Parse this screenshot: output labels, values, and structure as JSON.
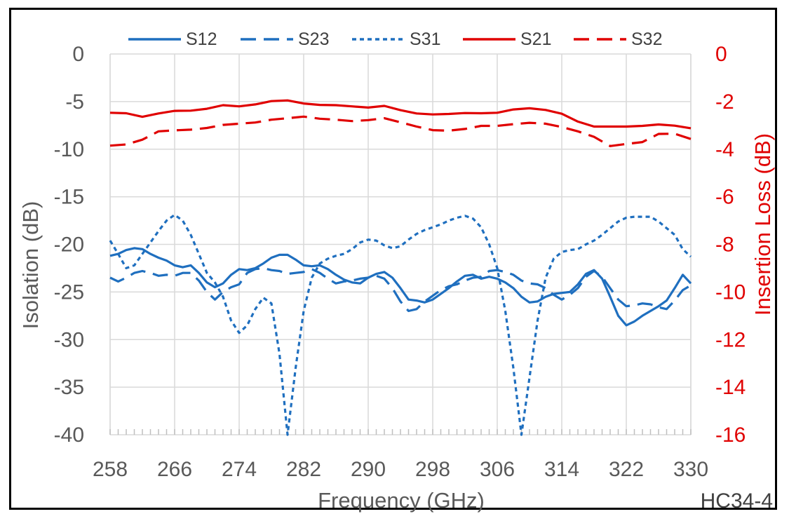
{
  "chart_data": {
    "type": "line",
    "title": "",
    "xlabel": "Frequency (GHz)",
    "ylabel_left": "Isolation (dB)",
    "ylabel_right": "Insertion Loss (dB)",
    "xlim": [
      258,
      330
    ],
    "ylim_left": [
      -40,
      0
    ],
    "ylim_right": [
      -16,
      0
    ],
    "x_ticks": [
      258,
      266,
      274,
      282,
      290,
      298,
      306,
      314,
      322,
      330
    ],
    "y_left_ticks": [
      0,
      -5,
      -10,
      -15,
      -20,
      -25,
      -30,
      -35,
      -40
    ],
    "y_right_ticks": [
      0,
      -2,
      -4,
      -6,
      -8,
      -10,
      -12,
      -14,
      -16
    ],
    "grid": true,
    "legend_position": "top",
    "annotation": "HC34-4",
    "colors": {
      "blue": "#1f6fbf",
      "red": "#e00000",
      "grid": "#d9d9d9",
      "axis_text": "#595959"
    },
    "series": [
      {
        "name": "S12",
        "axis": "left",
        "color": "#1f6fbf",
        "dash": "solid",
        "points": [
          [
            258,
            -21.2
          ],
          [
            259,
            -21.0
          ],
          [
            260,
            -20.6
          ],
          [
            261,
            -20.4
          ],
          [
            262,
            -20.5
          ],
          [
            263,
            -21.0
          ],
          [
            264,
            -21.4
          ],
          [
            265,
            -21.7
          ],
          [
            266,
            -22.2
          ],
          [
            267,
            -22.4
          ],
          [
            268,
            -22.2
          ],
          [
            269,
            -23.0
          ],
          [
            270,
            -24.0
          ],
          [
            271,
            -24.5
          ],
          [
            272,
            -24.1
          ],
          [
            273,
            -23.2
          ],
          [
            274,
            -22.6
          ],
          [
            275,
            -22.7
          ],
          [
            276,
            -22.5
          ],
          [
            277,
            -22.0
          ],
          [
            278,
            -21.4
          ],
          [
            279,
            -21.1
          ],
          [
            280,
            -21.1
          ],
          [
            281,
            -21.6
          ],
          [
            282,
            -22.2
          ],
          [
            283,
            -22.3
          ],
          [
            284,
            -22.2
          ],
          [
            285,
            -22.6
          ],
          [
            286,
            -23.2
          ],
          [
            287,
            -23.7
          ],
          [
            288,
            -24.0
          ],
          [
            289,
            -24.1
          ],
          [
            290,
            -23.5
          ],
          [
            291,
            -23.1
          ],
          [
            292,
            -22.9
          ],
          [
            293,
            -23.5
          ],
          [
            294,
            -24.6
          ],
          [
            295,
            -25.8
          ],
          [
            296,
            -25.9
          ],
          [
            297,
            -26.1
          ],
          [
            298,
            -25.8
          ],
          [
            299,
            -25.2
          ],
          [
            300,
            -24.6
          ],
          [
            301,
            -23.9
          ],
          [
            302,
            -23.3
          ],
          [
            303,
            -23.2
          ],
          [
            304,
            -23.6
          ],
          [
            305,
            -23.4
          ],
          [
            306,
            -23.6
          ],
          [
            307,
            -24.0
          ],
          [
            308,
            -24.6
          ],
          [
            309,
            -25.5
          ],
          [
            310,
            -26.1
          ],
          [
            311,
            -26.0
          ],
          [
            312,
            -25.5
          ],
          [
            313,
            -25.2
          ],
          [
            314,
            -25.1
          ],
          [
            315,
            -25.0
          ],
          [
            316,
            -24.2
          ],
          [
            317,
            -23.1
          ],
          [
            318,
            -22.7
          ],
          [
            319,
            -23.6
          ],
          [
            320,
            -25.5
          ],
          [
            321,
            -27.5
          ],
          [
            322,
            -28.5
          ],
          [
            323,
            -28.1
          ],
          [
            324,
            -27.5
          ],
          [
            325,
            -27.0
          ],
          [
            326,
            -26.5
          ],
          [
            327,
            -25.9
          ],
          [
            328,
            -24.6
          ],
          [
            329,
            -23.2
          ],
          [
            330,
            -24.1
          ]
        ]
      },
      {
        "name": "S23",
        "axis": "left",
        "color": "#1f6fbf",
        "dash": "long",
        "points": [
          [
            258,
            -23.5
          ],
          [
            259,
            -23.9
          ],
          [
            260,
            -23.5
          ],
          [
            261,
            -23.0
          ],
          [
            262,
            -22.8
          ],
          [
            263,
            -23.0
          ],
          [
            264,
            -23.3
          ],
          [
            265,
            -23.2
          ],
          [
            266,
            -23.3
          ],
          [
            267,
            -23.0
          ],
          [
            268,
            -23.0
          ],
          [
            269,
            -23.8
          ],
          [
            270,
            -25.0
          ],
          [
            271,
            -25.8
          ],
          [
            272,
            -25.0
          ],
          [
            273,
            -24.5
          ],
          [
            274,
            -24.2
          ],
          [
            275,
            -23.0
          ],
          [
            276,
            -22.6
          ],
          [
            277,
            -22.5
          ],
          [
            278,
            -22.7
          ],
          [
            279,
            -22.8
          ],
          [
            280,
            -23.1
          ],
          [
            281,
            -23.0
          ],
          [
            282,
            -22.9
          ],
          [
            283,
            -22.6
          ],
          [
            284,
            -23.0
          ],
          [
            285,
            -23.6
          ],
          [
            286,
            -24.1
          ],
          [
            287,
            -23.9
          ],
          [
            288,
            -23.8
          ],
          [
            289,
            -23.6
          ],
          [
            290,
            -23.5
          ],
          [
            291,
            -23.3
          ],
          [
            292,
            -23.6
          ],
          [
            293,
            -24.6
          ],
          [
            294,
            -26.0
          ],
          [
            295,
            -27.0
          ],
          [
            296,
            -26.8
          ],
          [
            297,
            -26.0
          ],
          [
            298,
            -25.4
          ],
          [
            299,
            -24.8
          ],
          [
            300,
            -24.4
          ],
          [
            301,
            -24.2
          ],
          [
            302,
            -23.8
          ],
          [
            303,
            -23.5
          ],
          [
            304,
            -23.4
          ],
          [
            305,
            -22.8
          ],
          [
            306,
            -22.7
          ],
          [
            307,
            -22.9
          ],
          [
            308,
            -23.2
          ],
          [
            309,
            -23.8
          ],
          [
            310,
            -24.1
          ],
          [
            311,
            -24.2
          ],
          [
            312,
            -24.6
          ],
          [
            313,
            -25.3
          ],
          [
            314,
            -25.8
          ],
          [
            315,
            -25.3
          ],
          [
            316,
            -24.6
          ],
          [
            317,
            -23.4
          ],
          [
            318,
            -22.8
          ],
          [
            319,
            -23.4
          ],
          [
            320,
            -24.6
          ],
          [
            321,
            -25.8
          ],
          [
            322,
            -26.5
          ],
          [
            323,
            -26.4
          ],
          [
            324,
            -26.2
          ],
          [
            325,
            -26.3
          ],
          [
            326,
            -26.6
          ],
          [
            327,
            -26.8
          ],
          [
            328,
            -25.9
          ],
          [
            329,
            -24.8
          ],
          [
            330,
            -24.3
          ]
        ]
      },
      {
        "name": "S31",
        "axis": "left",
        "color": "#1f6fbf",
        "dash": "short",
        "points": [
          [
            258,
            -19.6
          ],
          [
            259,
            -21.0
          ],
          [
            260,
            -22.5
          ],
          [
            261,
            -22.2
          ],
          [
            262,
            -21.0
          ],
          [
            263,
            -19.8
          ],
          [
            264,
            -18.6
          ],
          [
            265,
            -17.5
          ],
          [
            266,
            -16.9
          ],
          [
            267,
            -17.5
          ],
          [
            268,
            -19.0
          ],
          [
            269,
            -21.0
          ],
          [
            270,
            -23.0
          ],
          [
            271,
            -24.0
          ],
          [
            272,
            -25.5
          ],
          [
            273,
            -28.0
          ],
          [
            274,
            -29.3
          ],
          [
            275,
            -28.5
          ],
          [
            276,
            -26.8
          ],
          [
            277,
            -25.6
          ],
          [
            278,
            -26.2
          ],
          [
            279,
            -31.5
          ],
          [
            280,
            -40.0
          ],
          [
            281,
            -33.0
          ],
          [
            282,
            -27.0
          ],
          [
            283,
            -23.5
          ],
          [
            284,
            -22.0
          ],
          [
            285,
            -21.5
          ],
          [
            286,
            -21.2
          ],
          [
            287,
            -21.0
          ],
          [
            288,
            -20.5
          ],
          [
            289,
            -19.8
          ],
          [
            290,
            -19.5
          ],
          [
            291,
            -19.6
          ],
          [
            292,
            -20.1
          ],
          [
            293,
            -20.4
          ],
          [
            294,
            -20.2
          ],
          [
            295,
            -19.5
          ],
          [
            296,
            -18.9
          ],
          [
            297,
            -18.5
          ],
          [
            298,
            -18.2
          ],
          [
            299,
            -17.9
          ],
          [
            300,
            -17.5
          ],
          [
            301,
            -17.2
          ],
          [
            302,
            -17.0
          ],
          [
            303,
            -17.3
          ],
          [
            304,
            -18.2
          ],
          [
            305,
            -20.0
          ],
          [
            306,
            -22.5
          ],
          [
            307,
            -27.0
          ],
          [
            308,
            -33.0
          ],
          [
            309,
            -40.0
          ],
          [
            310,
            -34.0
          ],
          [
            311,
            -28.0
          ],
          [
            312,
            -23.5
          ],
          [
            313,
            -21.5
          ],
          [
            314,
            -20.8
          ],
          [
            315,
            -20.6
          ],
          [
            316,
            -20.5
          ],
          [
            317,
            -20.0
          ],
          [
            318,
            -19.6
          ],
          [
            319,
            -19.0
          ],
          [
            320,
            -18.3
          ],
          [
            321,
            -17.6
          ],
          [
            322,
            -17.2
          ],
          [
            323,
            -17.1
          ],
          [
            324,
            -17.1
          ],
          [
            325,
            -17.1
          ],
          [
            326,
            -17.6
          ],
          [
            327,
            -18.3
          ],
          [
            328,
            -19.0
          ],
          [
            329,
            -20.5
          ],
          [
            330,
            -21.3
          ]
        ]
      },
      {
        "name": "S21",
        "axis": "right",
        "color": "#e00000",
        "dash": "solid",
        "points": [
          [
            258,
            -2.47
          ],
          [
            260,
            -2.49
          ],
          [
            262,
            -2.64
          ],
          [
            264,
            -2.5
          ],
          [
            266,
            -2.39
          ],
          [
            268,
            -2.38
          ],
          [
            270,
            -2.3
          ],
          [
            272,
            -2.15
          ],
          [
            274,
            -2.2
          ],
          [
            276,
            -2.12
          ],
          [
            278,
            -1.98
          ],
          [
            280,
            -1.95
          ],
          [
            282,
            -2.08
          ],
          [
            284,
            -2.14
          ],
          [
            286,
            -2.15
          ],
          [
            288,
            -2.2
          ],
          [
            290,
            -2.25
          ],
          [
            292,
            -2.18
          ],
          [
            294,
            -2.36
          ],
          [
            296,
            -2.5
          ],
          [
            298,
            -2.54
          ],
          [
            300,
            -2.52
          ],
          [
            302,
            -2.48
          ],
          [
            304,
            -2.49
          ],
          [
            306,
            -2.47
          ],
          [
            308,
            -2.33
          ],
          [
            310,
            -2.28
          ],
          [
            312,
            -2.35
          ],
          [
            314,
            -2.51
          ],
          [
            316,
            -2.84
          ],
          [
            318,
            -3.05
          ],
          [
            320,
            -3.05
          ],
          [
            322,
            -3.05
          ],
          [
            324,
            -3.02
          ],
          [
            326,
            -2.96
          ],
          [
            328,
            -3.01
          ],
          [
            330,
            -3.12
          ]
        ]
      },
      {
        "name": "S32",
        "axis": "right",
        "color": "#e00000",
        "dash": "long",
        "points": [
          [
            258,
            -3.85
          ],
          [
            260,
            -3.8
          ],
          [
            262,
            -3.6
          ],
          [
            264,
            -3.25
          ],
          [
            266,
            -3.21
          ],
          [
            268,
            -3.18
          ],
          [
            270,
            -3.11
          ],
          [
            272,
            -2.98
          ],
          [
            274,
            -2.93
          ],
          [
            276,
            -2.88
          ],
          [
            278,
            -2.76
          ],
          [
            280,
            -2.7
          ],
          [
            282,
            -2.63
          ],
          [
            284,
            -2.72
          ],
          [
            286,
            -2.76
          ],
          [
            288,
            -2.82
          ],
          [
            290,
            -2.78
          ],
          [
            292,
            -2.7
          ],
          [
            294,
            -2.87
          ],
          [
            296,
            -3.05
          ],
          [
            298,
            -3.2
          ],
          [
            300,
            -3.22
          ],
          [
            302,
            -3.15
          ],
          [
            304,
            -3.02
          ],
          [
            306,
            -3.02
          ],
          [
            308,
            -2.95
          ],
          [
            310,
            -2.89
          ],
          [
            312,
            -2.93
          ],
          [
            314,
            -3.07
          ],
          [
            316,
            -3.25
          ],
          [
            318,
            -3.48
          ],
          [
            320,
            -3.87
          ],
          [
            322,
            -3.78
          ],
          [
            324,
            -3.7
          ],
          [
            326,
            -3.36
          ],
          [
            328,
            -3.35
          ],
          [
            330,
            -3.57
          ]
        ]
      }
    ]
  }
}
